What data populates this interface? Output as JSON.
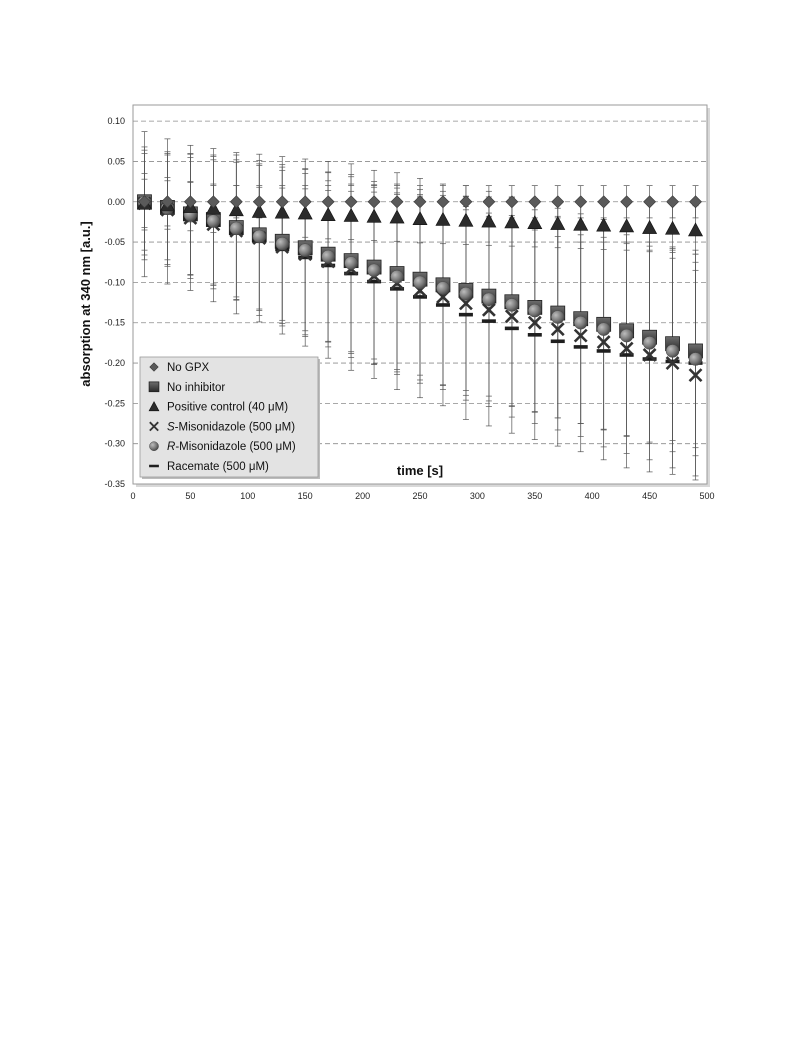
{
  "chart_data": {
    "type": "scatter",
    "xlabel": "time [s]",
    "ylabel": "absorption at 340 nm [a.u.]",
    "xlim": [
      0,
      500
    ],
    "ylim": [
      -0.35,
      0.12
    ],
    "x_ticks": [
      0,
      50,
      100,
      150,
      200,
      250,
      300,
      350,
      400,
      450,
      500
    ],
    "x_tick_labels": [
      "0",
      "50",
      "100",
      "150",
      "200",
      "250",
      "300",
      "350",
      "400",
      "450",
      "500"
    ],
    "y_ticks": [
      0.1,
      0.05,
      0.0,
      -0.05,
      -0.1,
      -0.15,
      -0.2,
      -0.25,
      -0.3,
      -0.35
    ],
    "y_tick_labels": [
      "0.10",
      "0.05",
      "0.00",
      "-0.05",
      "-0.10",
      "-0.15",
      "-0.20",
      "-0.25",
      "-0.30",
      "-0.35"
    ],
    "grid": "horizontal dashed",
    "legend_position": "bottom-left",
    "x": [
      10,
      30,
      50,
      70,
      90,
      110,
      130,
      150,
      170,
      190,
      210,
      230,
      250,
      270,
      290,
      310,
      330,
      350,
      370,
      390,
      410,
      430,
      450,
      470,
      490
    ],
    "series": [
      {
        "name": "No GPX",
        "marker": "diamond",
        "values": [
          0,
          0,
          0,
          0,
          0,
          0,
          0,
          0,
          0,
          0,
          0,
          0,
          0,
          0,
          0,
          0,
          0,
          0,
          0,
          0,
          0,
          0,
          0,
          0,
          0
        ],
        "errors": [
          0.035,
          0.03,
          0.025,
          0.02,
          0.02,
          0.02,
          0.02,
          0.02,
          0.02,
          0.02,
          0.02,
          0.02,
          0.02,
          0.02,
          0.02,
          0.02,
          0.02,
          0.02,
          0.02,
          0.02,
          0.02,
          0.02,
          0.02,
          0.02,
          0.02
        ]
      },
      {
        "name": "No inhibitor",
        "marker": "square",
        "values": [
          0.0,
          -0.007,
          -0.015,
          -0.022,
          -0.032,
          -0.041,
          -0.049,
          -0.057,
          -0.065,
          -0.073,
          -0.081,
          -0.089,
          -0.096,
          -0.103,
          -0.11,
          -0.117,
          -0.124,
          -0.131,
          -0.138,
          -0.145,
          -0.152,
          -0.16,
          -0.168,
          -0.176,
          -0.185
        ],
        "errors": [
          0.06,
          0.065,
          0.075,
          0.08,
          0.09,
          0.1,
          0.105,
          0.11,
          0.115,
          0.12,
          0.12,
          0.125,
          0.125,
          0.125,
          0.13,
          0.13,
          0.13,
          0.13,
          0.13,
          0.13,
          0.13,
          0.13,
          0.13,
          0.12,
          0.12
        ]
      },
      {
        "name": "Positive control (40 μM)",
        "name_parts": [
          "",
          "Positive control (40 μM)"
        ],
        "marker": "triangle",
        "values": [
          -0.002,
          -0.004,
          -0.006,
          -0.008,
          -0.01,
          -0.012,
          -0.013,
          -0.014,
          -0.016,
          -0.017,
          -0.018,
          -0.019,
          -0.021,
          -0.022,
          -0.023,
          -0.024,
          -0.025,
          -0.026,
          -0.027,
          -0.028,
          -0.029,
          -0.03,
          -0.032,
          -0.033,
          -0.035
        ],
        "errors": [
          0.03,
          0.03,
          0.03,
          0.03,
          0.03,
          0.03,
          0.03,
          0.03,
          0.03,
          0.03,
          0.03,
          0.03,
          0.03,
          0.03,
          0.03,
          0.03,
          0.03,
          0.03,
          0.03,
          0.03,
          0.03,
          0.03,
          0.03,
          0.03,
          0.03
        ]
      },
      {
        "name": "S-Misonidazole (500 μM)",
        "name_parts": [
          "S",
          "-Misonidazole (500 μM)"
        ],
        "marker": "x",
        "values": [
          -0.002,
          -0.01,
          -0.02,
          -0.028,
          -0.036,
          -0.045,
          -0.056,
          -0.065,
          -0.074,
          -0.083,
          -0.092,
          -0.101,
          -0.11,
          -0.118,
          -0.126,
          -0.134,
          -0.142,
          -0.15,
          -0.158,
          -0.166,
          -0.174,
          -0.182,
          -0.19,
          -0.2,
          -0.215
        ],
        "errors": [
          0.07,
          0.07,
          0.075,
          0.08,
          0.085,
          0.09,
          0.095,
          0.1,
          0.1,
          0.105,
          0.11,
          0.11,
          0.115,
          0.115,
          0.12,
          0.12,
          0.125,
          0.125,
          0.125,
          0.125,
          0.13,
          0.13,
          0.13,
          0.13,
          0.13
        ]
      },
      {
        "name": "R-Misonidazole (500 μM)",
        "name_parts": [
          "R",
          "-Misonidazole (500 μM)"
        ],
        "marker": "circle",
        "values": [
          -0.001,
          -0.008,
          -0.016,
          -0.024,
          -0.033,
          -0.043,
          -0.052,
          -0.06,
          -0.068,
          -0.076,
          -0.085,
          -0.093,
          -0.1,
          -0.107,
          -0.114,
          -0.121,
          -0.128,
          -0.135,
          -0.143,
          -0.15,
          -0.158,
          -0.166,
          -0.175,
          -0.185,
          -0.195
        ],
        "errors": [
          0.065,
          0.07,
          0.075,
          0.08,
          0.085,
          0.09,
          0.095,
          0.1,
          0.105,
          0.11,
          0.11,
          0.115,
          0.115,
          0.12,
          0.12,
          0.12,
          0.125,
          0.125,
          0.125,
          0.125,
          0.125,
          0.125,
          0.125,
          0.125,
          0.12
        ]
      },
      {
        "name": "Racemate (500 μM)",
        "marker": "dash",
        "values": [
          -0.003,
          -0.012,
          -0.02,
          -0.029,
          -0.039,
          -0.049,
          -0.059,
          -0.069,
          -0.079,
          -0.089,
          -0.099,
          -0.108,
          -0.118,
          -0.128,
          -0.14,
          -0.148,
          -0.157,
          -0.165,
          -0.173,
          -0.18,
          -0.185,
          -0.19,
          -0.195,
          -0.198,
          -0.2
        ],
        "errors": [
          0.09,
          0.09,
          0.09,
          0.095,
          0.1,
          0.1,
          0.105,
          0.11,
          0.115,
          0.12,
          0.12,
          0.125,
          0.125,
          0.125,
          0.13,
          0.13,
          0.13,
          0.13,
          0.13,
          0.13,
          0.135,
          0.14,
          0.14,
          0.14,
          0.14
        ]
      }
    ]
  }
}
